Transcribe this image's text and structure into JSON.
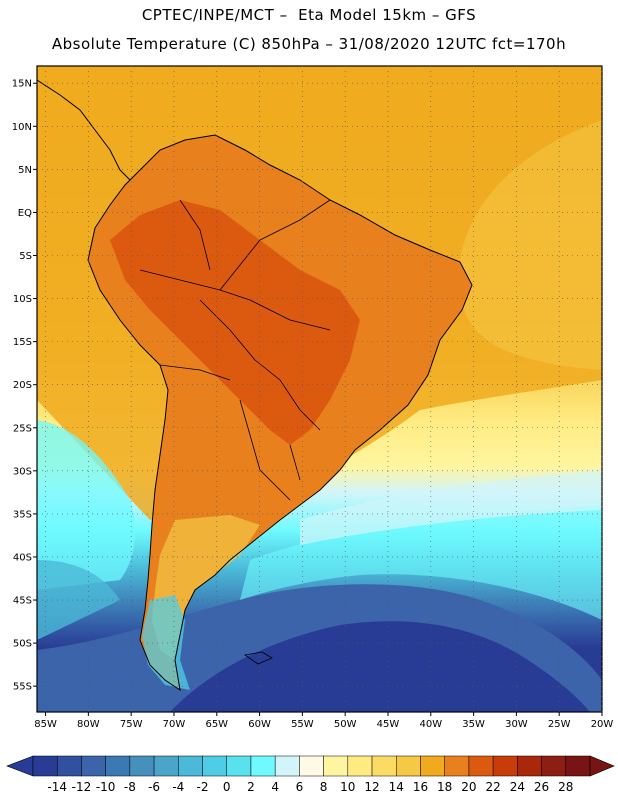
{
  "header": {
    "line1": "CPTEC/INPE/MCT –  Eta Model 15km – GFS",
    "line2": "Absolute Temperature (C) 850hPa – 31/08/2020 12UTC fct=170h"
  },
  "map": {
    "lat_labels": [
      "15N",
      "10N",
      "5N",
      "EQ",
      "5S",
      "10S",
      "15S",
      "20S",
      "25S",
      "30S",
      "35S",
      "40S",
      "45S",
      "50S",
      "55S"
    ],
    "lat_values": [
      15,
      10,
      5,
      0,
      -5,
      -10,
      -15,
      -20,
      -25,
      -30,
      -35,
      -40,
      -45,
      -50,
      -55
    ],
    "lon_labels": [
      "85W",
      "80W",
      "75W",
      "70W",
      "65W",
      "60W",
      "55W",
      "50W",
      "45W",
      "40W",
      "35W",
      "30W",
      "25W",
      "20W"
    ],
    "lon_values": [
      -85,
      -80,
      -75,
      -70,
      -65,
      -60,
      -55,
      -50,
      -45,
      -40,
      -35,
      -30,
      -25,
      -20
    ],
    "lon_range": [
      -86,
      -20
    ],
    "lat_range": [
      -58,
      17
    ],
    "ocean_color": "#f0aa1e",
    "land_color": "#e8801e"
  },
  "colorbar": {
    "labels": [
      "-14",
      "-12",
      "-10",
      "-8",
      "-6",
      "-4",
      "-2",
      "0",
      "2",
      "4",
      "6",
      "8",
      "10",
      "12",
      "14",
      "16",
      "18",
      "20",
      "22",
      "24",
      "26",
      "28"
    ],
    "colors": [
      "#283c96",
      "#3250a0",
      "#3c64aa",
      "#3c78b4",
      "#4690be",
      "#4ba5c8",
      "#4bb9d7",
      "#50cde6",
      "#5ae1ee",
      "#6efaff",
      "#d2f5fa",
      "#fffae6",
      "#fff5a0",
      "#ffeb82",
      "#fadc64",
      "#f5c846",
      "#f0aa1e",
      "#e8801e",
      "#dc5a0f",
      "#c83c0a",
      "#aa280a",
      "#8c1e14",
      "#781414"
    ],
    "under_color": "#283c96",
    "over_color": "#781414"
  }
}
